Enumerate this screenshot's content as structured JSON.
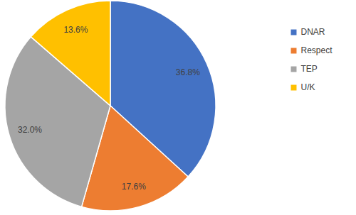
{
  "chart_data": {
    "type": "pie",
    "categories": [
      "DNAR",
      "Respect",
      "TEP",
      "U/K"
    ],
    "values": [
      36.8,
      17.6,
      32.0,
      13.6
    ],
    "value_labels": [
      "36.8%",
      "17.6%",
      "32.0%",
      "13.6%"
    ],
    "colors": [
      "#4472c4",
      "#ed7d31",
      "#a5a5a5",
      "#ffc000"
    ],
    "data_labels": true,
    "legend": "right"
  }
}
